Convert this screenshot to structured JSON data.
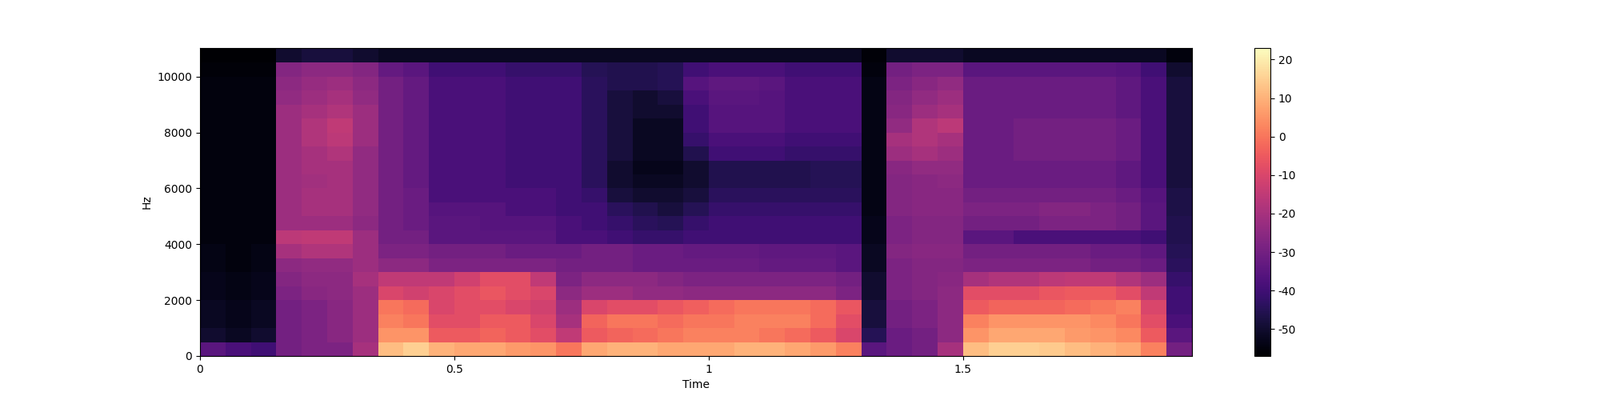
{
  "chart_data": {
    "type": "heatmap",
    "xlabel": "Time",
    "ylabel": "Hz",
    "xlim": [
      0,
      1.95
    ],
    "ylim": [
      0,
      11025
    ],
    "xticks": [
      0,
      0.5,
      1,
      1.5
    ],
    "yticks": [
      0,
      2000,
      4000,
      6000,
      8000,
      10000
    ],
    "color_range": [
      -57,
      23
    ],
    "color_ticks": [
      -50,
      -40,
      -30,
      -20,
      -10,
      0,
      10,
      20
    ],
    "x": [
      0,
      0.05,
      0.1,
      0.15,
      0.2,
      0.25,
      0.3,
      0.35,
      0.4,
      0.45,
      0.5,
      0.55,
      0.6,
      0.65,
      0.7,
      0.75,
      0.8,
      0.85,
      0.9,
      0.95,
      1.0,
      1.05,
      1.1,
      1.15,
      1.2,
      1.25,
      1.3,
      1.35,
      1.4,
      1.45,
      1.5,
      1.55,
      1.6,
      1.65,
      1.7,
      1.75,
      1.8,
      1.85,
      1.9,
      1.95
    ],
    "y": [
      0,
      500,
      1000,
      1500,
      2000,
      2500,
      3000,
      3500,
      4000,
      4500,
      5000,
      5500,
      6000,
      6500,
      7000,
      7500,
      8000,
      8500,
      9000,
      9500,
      10000,
      10500,
      11025
    ],
    "cells": [
      [
        -35,
        -38,
        -40,
        -30,
        -28,
        -28,
        -20,
        12,
        15,
        10,
        8,
        8,
        6,
        5,
        0,
        8,
        10,
        10,
        8,
        8,
        8,
        10,
        10,
        8,
        6,
        2,
        -35,
        -32,
        -30,
        -20,
        12,
        15,
        15,
        14,
        12,
        10,
        8,
        2,
        -30
      ],
      [
        -50,
        -52,
        -50,
        -30,
        -28,
        -26,
        -22,
        5,
        5,
        -5,
        -5,
        -3,
        -5,
        -8,
        -15,
        -5,
        -3,
        -2,
        0,
        2,
        2,
        2,
        0,
        -2,
        -5,
        -10,
        -45,
        -32,
        -30,
        -25,
        5,
        8,
        8,
        8,
        6,
        5,
        3,
        -5,
        -35
      ],
      [
        -52,
        -53,
        -52,
        -30,
        -28,
        -26,
        -22,
        2,
        0,
        -8,
        -8,
        -5,
        -5,
        -10,
        -20,
        -3,
        0,
        0,
        -2,
        0,
        0,
        2,
        2,
        2,
        -2,
        -8,
        -48,
        -30,
        -28,
        -25,
        2,
        5,
        5,
        5,
        5,
        3,
        0,
        -8,
        -38
      ],
      [
        -52,
        -53,
        -52,
        -30,
        -28,
        -26,
        -22,
        0,
        -2,
        -10,
        -8,
        -8,
        -10,
        -12,
        -22,
        -10,
        -8,
        -8,
        -6,
        -4,
        -2,
        0,
        0,
        0,
        -2,
        -6,
        -48,
        -30,
        -28,
        -25,
        -5,
        -3,
        -3,
        -3,
        -2,
        0,
        2,
        -10,
        -40
      ],
      [
        -53,
        -54,
        -53,
        -28,
        -26,
        -25,
        -22,
        -10,
        -12,
        -10,
        -8,
        -6,
        -8,
        -10,
        -25,
        -22,
        -22,
        -24,
        -24,
        -25,
        -25,
        -25,
        -25,
        -25,
        -25,
        -28,
        -50,
        -28,
        -27,
        -25,
        -8,
        -8,
        -8,
        -6,
        -5,
        -5,
        -8,
        -15,
        -40
      ],
      [
        -53,
        -54,
        -53,
        -27,
        -25,
        -25,
        -20,
        -15,
        -15,
        -15,
        -12,
        -8,
        -8,
        -15,
        -28,
        -25,
        -25,
        -25,
        -27,
        -28,
        -28,
        -28,
        -28,
        -28,
        -28,
        -30,
        -50,
        -28,
        -27,
        -26,
        -20,
        -18,
        -18,
        -16,
        -15,
        -15,
        -18,
        -22,
        -42
      ],
      [
        -54,
        -55,
        -54,
        -25,
        -24,
        -24,
        -22,
        -25,
        -25,
        -28,
        -28,
        -28,
        -28,
        -28,
        -30,
        -30,
        -30,
        -32,
        -32,
        -32,
        -32,
        -32,
        -33,
        -33,
        -33,
        -35,
        -52,
        -28,
        -27,
        -27,
        -28,
        -28,
        -28,
        -28,
        -28,
        -30,
        -30,
        -32,
        -44
      ],
      [
        -54,
        -55,
        -54,
        -20,
        -18,
        -18,
        -22,
        -28,
        -28,
        -30,
        -30,
        -30,
        -32,
        -32,
        -32,
        -30,
        -30,
        -32,
        -32,
        -33,
        -33,
        -33,
        -34,
        -34,
        -34,
        -35,
        -52,
        -27,
        -26,
        -26,
        -30,
        -30,
        -30,
        -30,
        -30,
        -32,
        -32,
        -34,
        -45
      ],
      [
        -55,
        -55,
        -55,
        -16,
        -15,
        -15,
        -22,
        -30,
        -30,
        -35,
        -35,
        -35,
        -35,
        -35,
        -38,
        -38,
        -40,
        -42,
        -42,
        -40,
        -40,
        -40,
        -40,
        -40,
        -40,
        -40,
        -53,
        -28,
        -27,
        -27,
        -35,
        -35,
        -38,
        -38,
        -38,
        -38,
        -38,
        -40,
        -46
      ],
      [
        -55,
        -55,
        -55,
        -22,
        -22,
        -22,
        -25,
        -30,
        -32,
        -35,
        -35,
        -36,
        -36,
        -36,
        -38,
        -40,
        -42,
        -44,
        -45,
        -42,
        -40,
        -40,
        -40,
        -40,
        -40,
        -40,
        -53,
        -28,
        -27,
        -27,
        -30,
        -30,
        -30,
        -28,
        -28,
        -28,
        -30,
        -35,
        -46
      ],
      [
        -55,
        -55,
        -55,
        -22,
        -20,
        -20,
        -24,
        -30,
        -32,
        -36,
        -36,
        -36,
        -38,
        -38,
        -40,
        -40,
        -44,
        -46,
        -48,
        -45,
        -42,
        -42,
        -42,
        -42,
        -42,
        -42,
        -54,
        -27,
        -26,
        -26,
        -28,
        -28,
        -28,
        -27,
        -27,
        -28,
        -30,
        -35,
        -47
      ],
      [
        -55,
        -55,
        -55,
        -22,
        -20,
        -20,
        -24,
        -30,
        -32,
        -38,
        -38,
        -38,
        -38,
        -38,
        -40,
        -42,
        -48,
        -50,
        -50,
        -48,
        -44,
        -44,
        -44,
        -44,
        -44,
        -44,
        -54,
        -27,
        -26,
        -26,
        -30,
        -30,
        -30,
        -30,
        -30,
        -30,
        -32,
        -36,
        -47
      ],
      [
        -55,
        -55,
        -55,
        -22,
        -21,
        -20,
        -24,
        -30,
        -33,
        -38,
        -38,
        -38,
        -40,
        -40,
        -40,
        -44,
        -50,
        -52,
        -52,
        -50,
        -46,
        -46,
        -46,
        -46,
        -45,
        -45,
        -54,
        -27,
        -26,
        -25,
        -32,
        -32,
        -32,
        -32,
        -32,
        -32,
        -34,
        -38,
        -48
      ],
      [
        -55,
        -55,
        -55,
        -22,
        -20,
        -20,
        -24,
        -30,
        -33,
        -38,
        -38,
        -38,
        -40,
        -40,
        -40,
        -44,
        -50,
        -53,
        -53,
        -50,
        -46,
        -46,
        -46,
        -46,
        -45,
        -45,
        -54,
        -26,
        -24,
        -24,
        -32,
        -32,
        -32,
        -32,
        -32,
        -32,
        -34,
        -38,
        -48
      ],
      [
        -55,
        -55,
        -55,
        -22,
        -20,
        -18,
        -24,
        -30,
        -33,
        -38,
        -38,
        -38,
        -40,
        -40,
        -40,
        -44,
        -48,
        -52,
        -52,
        -46,
        -40,
        -40,
        -40,
        -42,
        -42,
        -42,
        -54,
        -22,
        -20,
        -22,
        -32,
        -32,
        -30,
        -30,
        -30,
        -30,
        -32,
        -38,
        -48
      ],
      [
        -55,
        -55,
        -55,
        -22,
        -18,
        -16,
        -22,
        -30,
        -33,
        -38,
        -38,
        -38,
        -40,
        -40,
        -40,
        -44,
        -48,
        -52,
        -52,
        -42,
        -38,
        -38,
        -38,
        -40,
        -40,
        -40,
        -54,
        -20,
        -18,
        -20,
        -32,
        -32,
        -30,
        -30,
        -30,
        -30,
        -32,
        -38,
        -48
      ],
      [
        -55,
        -55,
        -55,
        -22,
        -18,
        -15,
        -22,
        -30,
        -33,
        -38,
        -38,
        -38,
        -40,
        -40,
        -40,
        -44,
        -48,
        -52,
        -52,
        -40,
        -36,
        -36,
        -36,
        -38,
        -38,
        -38,
        -54,
        -24,
        -18,
        -16,
        -32,
        -32,
        -30,
        -30,
        -30,
        -30,
        -32,
        -38,
        -48
      ],
      [
        -55,
        -55,
        -55,
        -22,
        -20,
        -18,
        -22,
        -30,
        -33,
        -38,
        -38,
        -38,
        -40,
        -40,
        -40,
        -44,
        -48,
        -50,
        -50,
        -40,
        -36,
        -36,
        -36,
        -38,
        -38,
        -38,
        -54,
        -26,
        -22,
        -20,
        -32,
        -32,
        -32,
        -32,
        -32,
        -32,
        -34,
        -38,
        -48
      ],
      [
        -55,
        -55,
        -55,
        -24,
        -22,
        -20,
        -24,
        -30,
        -33,
        -38,
        -38,
        -38,
        -40,
        -40,
        -40,
        -44,
        -48,
        -50,
        -48,
        -38,
        -35,
        -35,
        -36,
        -38,
        -38,
        -38,
        -54,
        -27,
        -24,
        -22,
        -32,
        -32,
        -32,
        -32,
        -32,
        -32,
        -34,
        -38,
        -48
      ],
      [
        -55,
        -55,
        -55,
        -25,
        -23,
        -22,
        -25,
        -30,
        -33,
        -38,
        -38,
        -38,
        -40,
        -40,
        -40,
        -44,
        -46,
        -46,
        -45,
        -36,
        -34,
        -34,
        -35,
        -38,
        -38,
        -38,
        -54,
        -28,
        -26,
        -24,
        -32,
        -32,
        -32,
        -32,
        -32,
        -32,
        -34,
        -38,
        -48
      ],
      [
        -56,
        -56,
        -56,
        -27,
        -25,
        -25,
        -27,
        -33,
        -35,
        -40,
        -40,
        -40,
        -42,
        -42,
        -42,
        -45,
        -46,
        -46,
        -45,
        -40,
        -38,
        -38,
        -38,
        -40,
        -40,
        -40,
        -55,
        -30,
        -28,
        -28,
        -35,
        -35,
        -35,
        -35,
        -35,
        -35,
        -36,
        -40,
        -50
      ],
      [
        -57,
        -57,
        -57,
        -50,
        -48,
        -48,
        -50,
        -52,
        -52,
        -52,
        -52,
        -52,
        -52,
        -52,
        -52,
        -52,
        -52,
        -52,
        -52,
        -52,
        -52,
        -52,
        -52,
        -52,
        -52,
        -52,
        -56,
        -50,
        -50,
        -50,
        -52,
        -52,
        -52,
        -52,
        -52,
        -52,
        -52,
        -52,
        -55
      ]
    ]
  }
}
